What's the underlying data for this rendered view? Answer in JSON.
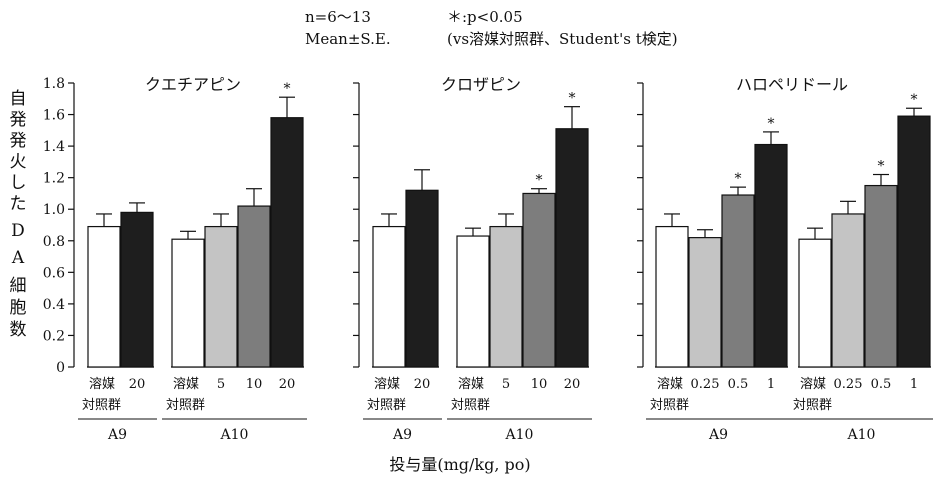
{
  "notes": {
    "n": "n=6〜13",
    "mean": "Mean±S.E.",
    "sig": "＊:p<0.05",
    "test": "(vs溶媒対照群、Student's t検定)"
  },
  "ylabel": [
    "自",
    "発",
    "発",
    "火",
    "し",
    "た",
    "D",
    "A",
    "細",
    "胞",
    "数"
  ],
  "xlabel": "投与量(mg/kg, po)",
  "colors": {
    "vehicle": "#ffffff",
    "light": "#c4c4c4",
    "mid": "#7d7d7d",
    "dark": "#1e1e1e"
  },
  "chart_data": [
    {
      "type": "bar",
      "title": "クエチアピン",
      "ylim": [
        0,
        1.8
      ],
      "yticks": [
        "0",
        "0.2",
        "0.4",
        "0.6",
        "0.8",
        "1.0",
        "1.2",
        "1.4",
        "1.6",
        "1.8"
      ],
      "groups": [
        {
          "name": "A9",
          "bars": [
            {
              "label": "溶媒",
              "label2": "対照群",
              "value": 0.89,
              "err": 0.08,
              "sig": false,
              "color": "vehicle"
            },
            {
              "label": "20",
              "value": 0.98,
              "err": 0.06,
              "sig": false,
              "color": "dark"
            }
          ]
        },
        {
          "name": "A10",
          "bars": [
            {
              "label": "溶媒",
              "label2": "対照群",
              "value": 0.81,
              "err": 0.05,
              "sig": false,
              "color": "vehicle"
            },
            {
              "label": "5",
              "value": 0.89,
              "err": 0.08,
              "sig": false,
              "color": "light"
            },
            {
              "label": "10",
              "value": 1.02,
              "err": 0.11,
              "sig": false,
              "color": "mid"
            },
            {
              "label": "20",
              "value": 1.58,
              "err": 0.13,
              "sig": true,
              "color": "dark"
            }
          ]
        }
      ]
    },
    {
      "type": "bar",
      "title": "クロザピン",
      "ylim": [
        0,
        1.8
      ],
      "groups": [
        {
          "name": "A9",
          "bars": [
            {
              "label": "溶媒",
              "label2": "対照群",
              "value": 0.89,
              "err": 0.08,
              "sig": false,
              "color": "vehicle"
            },
            {
              "label": "20",
              "value": 1.12,
              "err": 0.13,
              "sig": false,
              "color": "dark"
            }
          ]
        },
        {
          "name": "A10",
          "bars": [
            {
              "label": "溶媒",
              "label2": "対照群",
              "value": 0.83,
              "err": 0.05,
              "sig": false,
              "color": "vehicle"
            },
            {
              "label": "5",
              "value": 0.89,
              "err": 0.08,
              "sig": false,
              "color": "light"
            },
            {
              "label": "10",
              "value": 1.1,
              "err": 0.03,
              "sig": true,
              "color": "mid"
            },
            {
              "label": "20",
              "value": 1.51,
              "err": 0.14,
              "sig": true,
              "color": "dark"
            }
          ]
        }
      ]
    },
    {
      "type": "bar",
      "title": "ハロペリドール",
      "ylim": [
        0,
        1.8
      ],
      "groups": [
        {
          "name": "A9",
          "bars": [
            {
              "label": "溶媒",
              "label2": "対照群",
              "value": 0.89,
              "err": 0.08,
              "sig": false,
              "color": "vehicle"
            },
            {
              "label": "0.25",
              "value": 0.82,
              "err": 0.05,
              "sig": false,
              "color": "light"
            },
            {
              "label": "0.5",
              "value": 1.09,
              "err": 0.05,
              "sig": true,
              "color": "mid"
            },
            {
              "label": "1",
              "value": 1.41,
              "err": 0.08,
              "sig": true,
              "color": "dark"
            }
          ]
        },
        {
          "name": "A10",
          "bars": [
            {
              "label": "溶媒",
              "label2": "対照群",
              "value": 0.81,
              "err": 0.07,
              "sig": false,
              "color": "vehicle"
            },
            {
              "label": "0.25",
              "value": 0.97,
              "err": 0.08,
              "sig": false,
              "color": "light"
            },
            {
              "label": "0.5",
              "value": 1.15,
              "err": 0.07,
              "sig": true,
              "color": "mid"
            },
            {
              "label": "1",
              "value": 1.59,
              "err": 0.05,
              "sig": true,
              "color": "dark"
            }
          ]
        }
      ]
    }
  ]
}
